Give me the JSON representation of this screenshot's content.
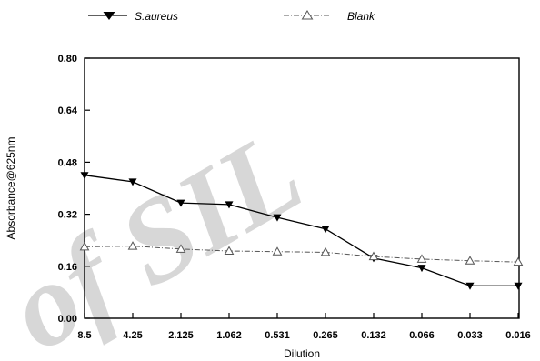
{
  "watermark": {
    "text": "of SIL",
    "color": "#d0d0d0"
  },
  "chart_data": {
    "type": "line",
    "title": "",
    "xlabel": "Dilution",
    "ylabel": "Absorbance@625nm",
    "categories": [
      "8.5",
      "4.25",
      "2.125",
      "1.062",
      "0.531",
      "0.265",
      "0.132",
      "0.066",
      "0.033",
      "0.016"
    ],
    "ylim": [
      0,
      0.8
    ],
    "yticks": [
      0.0,
      0.16,
      0.32,
      0.48,
      0.64,
      0.8
    ],
    "ytick_labels": [
      "0.00",
      "0.16",
      "0.32",
      "0.48",
      "0.64",
      "0.80"
    ],
    "grid": false,
    "legend_position": "top-left, above plot",
    "series": [
      {
        "name": "S.aureus",
        "values": [
          0.44,
          0.42,
          0.355,
          0.35,
          0.31,
          0.275,
          0.185,
          0.155,
          0.1,
          0.1
        ],
        "color": "#000000",
        "line_style": "solid",
        "marker": "filled-down-triangle"
      },
      {
        "name": "Blank",
        "values": [
          0.22,
          0.222,
          0.213,
          0.207,
          0.205,
          0.203,
          0.19,
          0.182,
          0.177,
          0.173
        ],
        "color": "#555555",
        "line_style": "dash-dot",
        "marker": "open-up-triangle"
      }
    ]
  }
}
